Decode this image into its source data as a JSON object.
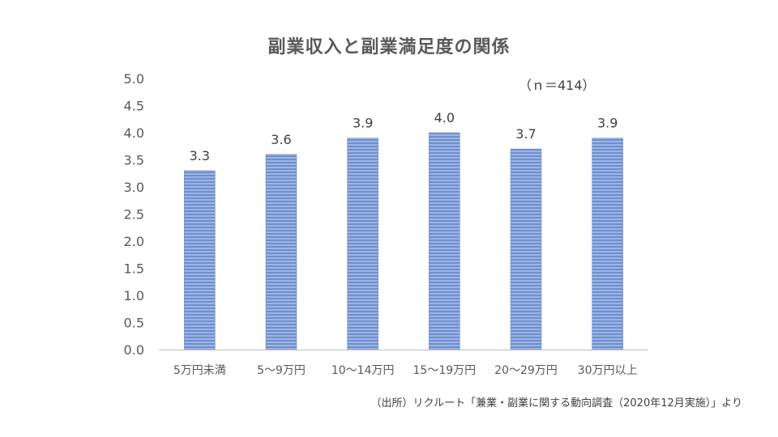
{
  "chart_data": {
    "type": "bar",
    "title": "副業収入と副業満足度の関係",
    "annotation": "（ｎ＝414）",
    "categories": [
      "5万円未満",
      "5～9万円",
      "10～14万円",
      "15～19万円",
      "20～29万円",
      "30万円以上"
    ],
    "values": [
      3.3,
      3.6,
      3.9,
      4.0,
      3.7,
      3.9
    ],
    "value_labels": [
      "3.3",
      "3.6",
      "3.9",
      "4.0",
      "3.7",
      "3.9"
    ],
    "yticks": [
      "0.0",
      "0.5",
      "1.0",
      "1.5",
      "2.0",
      "2.5",
      "3.0",
      "3.5",
      "4.0",
      "4.5",
      "5.0"
    ],
    "ylim": [
      0,
      5
    ],
    "grid": false,
    "legend": "none",
    "bar_color": "#8fa9dc",
    "bar_stripe_color": "#6f8fcf"
  },
  "source": "（出所）リクルート「兼業・副業に関する動向調査（2020年12月実施）」より"
}
